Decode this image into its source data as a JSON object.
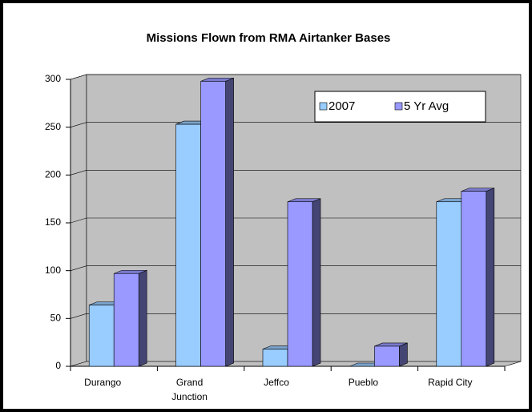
{
  "chart_data": {
    "type": "bar3d",
    "title": "Missions Flown from RMA Airtanker Bases",
    "categories": [
      "Durango",
      "Grand Junction",
      "Jeffco",
      "Pueblo",
      "Rapid City"
    ],
    "series": [
      {
        "name": "2007",
        "color": "#99ccff",
        "values": [
          64,
          253,
          18,
          0,
          172
        ]
      },
      {
        "name": "5 Yr Avg",
        "color": "#9999ff",
        "values": [
          97,
          298,
          172,
          21,
          183
        ]
      }
    ],
    "ylim": [
      0,
      300
    ],
    "yticks": [
      0,
      50,
      100,
      150,
      200,
      250,
      300
    ],
    "grid": true,
    "legend": "top-right"
  }
}
